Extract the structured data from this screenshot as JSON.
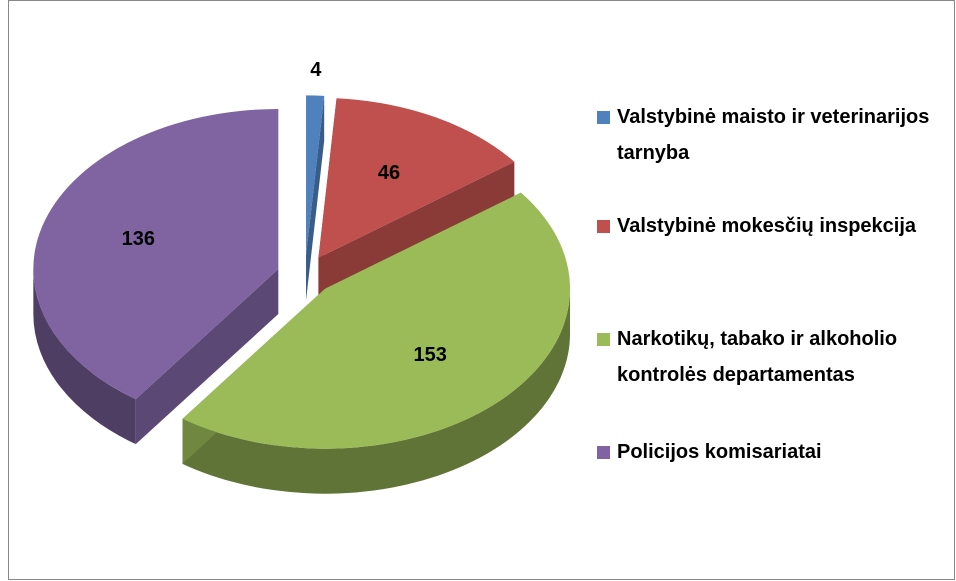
{
  "chart_data": {
    "type": "pie",
    "categories": [
      "Valstybinė maisto ir veterinarijos tarnyba",
      "Valstybinė mokesčių inspekcija",
      "Narkotikų, tabako ir alkoholio kontrolės departamentas",
      "Policijos komisariatai"
    ],
    "values": [
      4,
      46,
      153,
      136
    ],
    "colors": [
      "#4f81bd",
      "#c0504d",
      "#9bbb59",
      "#8064a2"
    ],
    "legend": "right"
  }
}
